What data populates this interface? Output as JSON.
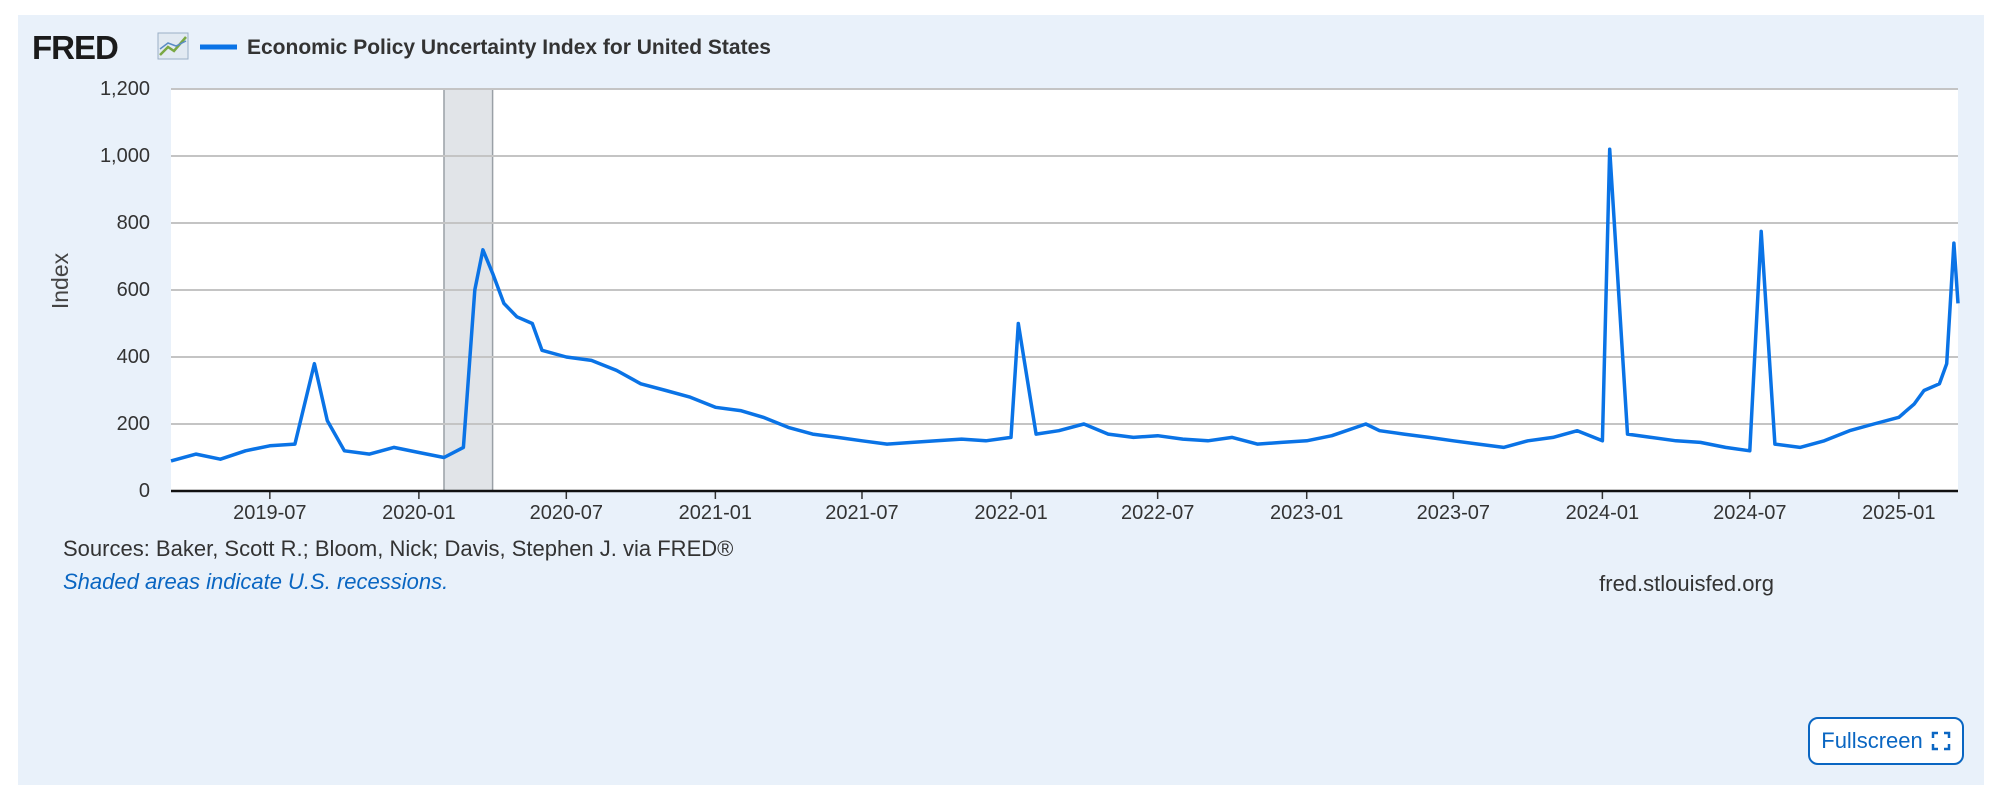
{
  "header": {
    "logo_text": "FRED",
    "series_title": "Economic Policy Uncertainty Index for United States",
    "series_color": "#0a73e6"
  },
  "footer": {
    "sources": "Sources: Baker, Scott R.; Bloom, Nick; Davis, Stephen J. via FRED®",
    "recession_note": "Shaded areas indicate U.S. recessions.",
    "site": "fred.stlouisfed.org",
    "fullscreen_label": "Fullscreen"
  },
  "chart_data": {
    "type": "line",
    "title": "Economic Policy Uncertainty Index for United States",
    "ylabel": "Index",
    "xlabel": "",
    "ylim": [
      0,
      1200
    ],
    "xlim": [
      "2019-03-01",
      "2025-03-15"
    ],
    "yticks": [
      0,
      200,
      400,
      600,
      800,
      1000,
      1200
    ],
    "ytick_labels": [
      "0",
      "200",
      "400",
      "600",
      "800",
      "1,000",
      "1,200"
    ],
    "xtick_labels": [
      "2019-07",
      "2020-01",
      "2020-07",
      "2021-01",
      "2021-07",
      "2022-01",
      "2022-07",
      "2023-01",
      "2023-07",
      "2024-01",
      "2024-07",
      "2025-01"
    ],
    "grid": true,
    "legend": "top-left",
    "recessions": [
      {
        "start": "2020-02-01",
        "end": "2020-04-01"
      }
    ],
    "series": [
      {
        "name": "Economic Policy Uncertainty Index for United States",
        "color": "#0a73e6",
        "x": [
          "2019-03-01",
          "2019-04-01",
          "2019-05-01",
          "2019-06-01",
          "2019-07-01",
          "2019-08-01",
          "2019-08-25",
          "2019-09-10",
          "2019-10-01",
          "2019-11-01",
          "2019-12-01",
          "2020-01-01",
          "2020-02-01",
          "2020-02-25",
          "2020-03-10",
          "2020-03-20",
          "2020-04-01",
          "2020-04-15",
          "2020-05-01",
          "2020-05-20",
          "2020-06-01",
          "2020-07-01",
          "2020-08-01",
          "2020-09-01",
          "2020-10-01",
          "2020-11-01",
          "2020-12-01",
          "2021-01-01",
          "2021-02-01",
          "2021-03-01",
          "2021-04-01",
          "2021-05-01",
          "2021-06-01",
          "2021-07-01",
          "2021-08-01",
          "2021-09-01",
          "2021-10-01",
          "2021-11-01",
          "2021-12-01",
          "2022-01-01",
          "2022-01-10",
          "2022-02-01",
          "2022-03-01",
          "2022-04-01",
          "2022-05-01",
          "2022-06-01",
          "2022-07-01",
          "2022-08-01",
          "2022-09-01",
          "2022-10-01",
          "2022-11-01",
          "2022-12-01",
          "2023-01-01",
          "2023-02-01",
          "2023-03-15",
          "2023-04-01",
          "2023-05-01",
          "2023-06-01",
          "2023-07-01",
          "2023-08-01",
          "2023-09-01",
          "2023-10-01",
          "2023-11-01",
          "2023-12-01",
          "2024-01-01",
          "2024-01-10",
          "2024-02-01",
          "2024-03-01",
          "2024-04-01",
          "2024-05-01",
          "2024-06-01",
          "2024-07-01",
          "2024-07-15",
          "2024-08-01",
          "2024-09-01",
          "2024-10-01",
          "2024-11-01",
          "2024-12-01",
          "2025-01-01",
          "2025-01-20",
          "2025-02-01",
          "2025-02-20",
          "2025-03-01",
          "2025-03-10",
          "2025-03-15"
        ],
        "y": [
          90,
          110,
          95,
          120,
          135,
          140,
          380,
          210,
          120,
          110,
          130,
          115,
          100,
          130,
          600,
          720,
          650,
          560,
          520,
          500,
          420,
          400,
          390,
          360,
          320,
          300,
          280,
          250,
          240,
          220,
          190,
          170,
          160,
          150,
          140,
          145,
          150,
          155,
          150,
          160,
          500,
          170,
          180,
          200,
          170,
          160,
          165,
          155,
          150,
          160,
          140,
          145,
          150,
          165,
          200,
          180,
          170,
          160,
          150,
          140,
          130,
          150,
          160,
          180,
          150,
          1020,
          170,
          160,
          150,
          145,
          130,
          120,
          775,
          140,
          130,
          150,
          180,
          200,
          220,
          260,
          300,
          320,
          380,
          740,
          560
        ]
      }
    ]
  }
}
